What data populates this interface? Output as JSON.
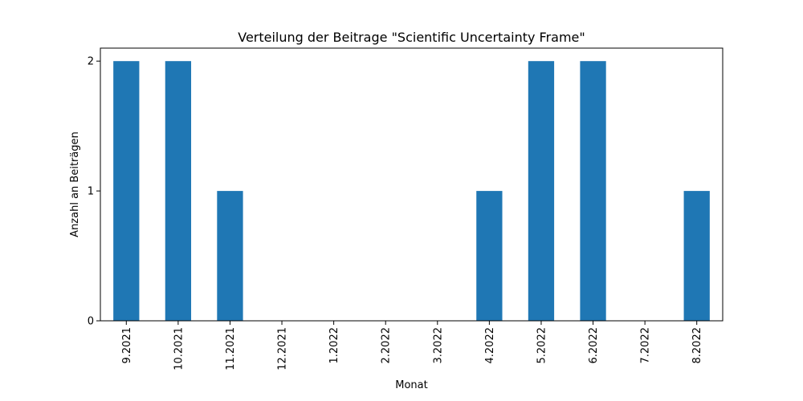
{
  "chart_data": {
    "type": "bar",
    "title": "Verteilung der Beitrage \"Scientific Uncertainty Frame\"",
    "xlabel": "Monat",
    "ylabel": "Anzahl an Beiträgen",
    "categories": [
      "9.2021",
      "10.2021",
      "11.2021",
      "12.2021",
      "1.2022",
      "2.2022",
      "3.2022",
      "4.2022",
      "5.2022",
      "6.2022",
      "7.2022",
      "8.2022"
    ],
    "values": [
      2,
      2,
      1,
      0,
      0,
      0,
      0,
      1,
      2,
      2,
      0,
      1
    ],
    "ylim": [
      0,
      2.1
    ],
    "yticks": [
      0,
      1,
      2
    ],
    "bar_color": "#1f77b4",
    "grid": false,
    "legend": false
  }
}
